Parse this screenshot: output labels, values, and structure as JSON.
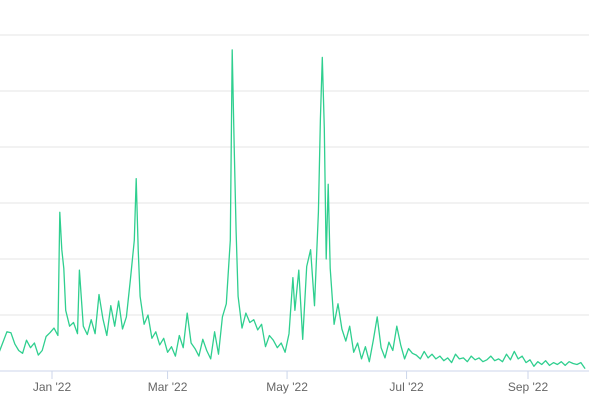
{
  "chart_data": {
    "type": "line",
    "title": "",
    "xlabel": "",
    "ylabel": "",
    "grid": true,
    "x_range": [
      "2021-12-01",
      "2022-09-30"
    ],
    "x_ticks": [
      {
        "label": "Jan '22",
        "date": "2022-01-01"
      },
      {
        "label": "Mar '22",
        "date": "2022-03-01"
      },
      {
        "label": "May '22",
        "date": "2022-05-01"
      },
      {
        "label": "Jul '22",
        "date": "2022-07-01"
      },
      {
        "label": "Sep '22",
        "date": "2022-09-01"
      }
    ],
    "y_axis_labels_visible": false,
    "y_gridline_count": 6,
    "series_color": "#2fcf8f",
    "series": [
      {
        "values": [
          [
            "2021-12-01",
            35
          ],
          [
            "2021-12-03",
            28
          ],
          [
            "2021-12-05",
            20
          ],
          [
            "2021-12-07",
            31
          ],
          [
            "2021-12-09",
            42
          ],
          [
            "2021-12-11",
            41
          ],
          [
            "2021-12-13",
            29
          ],
          [
            "2021-12-15",
            22
          ],
          [
            "2021-12-17",
            19
          ],
          [
            "2021-12-19",
            33
          ],
          [
            "2021-12-21",
            25
          ],
          [
            "2021-12-23",
            30
          ],
          [
            "2021-12-25",
            17
          ],
          [
            "2021-12-27",
            22
          ],
          [
            "2021-12-29",
            37
          ],
          [
            "2021-12-31",
            41
          ],
          [
            "2022-01-02",
            46
          ],
          [
            "2022-01-04",
            38
          ],
          [
            "2022-01-05",
            170
          ],
          [
            "2022-01-06",
            130
          ],
          [
            "2022-01-07",
            110
          ],
          [
            "2022-01-08",
            65
          ],
          [
            "2022-01-10",
            48
          ],
          [
            "2022-01-12",
            52
          ],
          [
            "2022-01-14",
            40
          ],
          [
            "2022-01-15",
            108
          ],
          [
            "2022-01-17",
            48
          ],
          [
            "2022-01-19",
            39
          ],
          [
            "2022-01-21",
            55
          ],
          [
            "2022-01-23",
            40
          ],
          [
            "2022-01-25",
            82
          ],
          [
            "2022-01-27",
            56
          ],
          [
            "2022-01-29",
            38
          ],
          [
            "2022-01-31",
            70
          ],
          [
            "2022-02-02",
            48
          ],
          [
            "2022-02-04",
            75
          ],
          [
            "2022-02-06",
            45
          ],
          [
            "2022-02-08",
            58
          ],
          [
            "2022-02-10",
            98
          ],
          [
            "2022-02-12",
            140
          ],
          [
            "2022-02-13",
            206
          ],
          [
            "2022-02-14",
            130
          ],
          [
            "2022-02-15",
            80
          ],
          [
            "2022-02-17",
            50
          ],
          [
            "2022-02-19",
            60
          ],
          [
            "2022-02-21",
            35
          ],
          [
            "2022-02-23",
            42
          ],
          [
            "2022-02-25",
            28
          ],
          [
            "2022-02-27",
            35
          ],
          [
            "2022-03-01",
            20
          ],
          [
            "2022-03-03",
            26
          ],
          [
            "2022-03-05",
            16
          ],
          [
            "2022-03-07",
            38
          ],
          [
            "2022-03-09",
            25
          ],
          [
            "2022-03-11",
            62
          ],
          [
            "2022-03-13",
            30
          ],
          [
            "2022-03-15",
            24
          ],
          [
            "2022-03-17",
            16
          ],
          [
            "2022-03-19",
            34
          ],
          [
            "2022-03-21",
            22
          ],
          [
            "2022-03-23",
            13
          ],
          [
            "2022-03-25",
            42
          ],
          [
            "2022-03-27",
            18
          ],
          [
            "2022-03-29",
            58
          ],
          [
            "2022-03-31",
            72
          ],
          [
            "2022-04-02",
            140
          ],
          [
            "2022-04-03",
            344
          ],
          [
            "2022-04-04",
            240
          ],
          [
            "2022-04-05",
            150
          ],
          [
            "2022-04-06",
            80
          ],
          [
            "2022-04-08",
            46
          ],
          [
            "2022-04-10",
            62
          ],
          [
            "2022-04-12",
            52
          ],
          [
            "2022-04-14",
            55
          ],
          [
            "2022-04-16",
            44
          ],
          [
            "2022-04-18",
            50
          ],
          [
            "2022-04-20",
            26
          ],
          [
            "2022-04-22",
            38
          ],
          [
            "2022-04-24",
            33
          ],
          [
            "2022-04-26",
            25
          ],
          [
            "2022-04-28",
            30
          ],
          [
            "2022-04-30",
            20
          ],
          [
            "2022-05-02",
            40
          ],
          [
            "2022-05-04",
            100
          ],
          [
            "2022-05-05",
            65
          ],
          [
            "2022-05-07",
            108
          ],
          [
            "2022-05-09",
            34
          ],
          [
            "2022-05-11",
            112
          ],
          [
            "2022-05-13",
            130
          ],
          [
            "2022-05-15",
            70
          ],
          [
            "2022-05-17",
            170
          ],
          [
            "2022-05-18",
            270
          ],
          [
            "2022-05-19",
            336
          ],
          [
            "2022-05-20",
            260
          ],
          [
            "2022-05-21",
            120
          ],
          [
            "2022-05-22",
            200
          ],
          [
            "2022-05-23",
            110
          ],
          [
            "2022-05-25",
            50
          ],
          [
            "2022-05-27",
            72
          ],
          [
            "2022-05-29",
            45
          ],
          [
            "2022-05-31",
            32
          ],
          [
            "2022-06-02",
            48
          ],
          [
            "2022-06-04",
            20
          ],
          [
            "2022-06-06",
            30
          ],
          [
            "2022-06-08",
            13
          ],
          [
            "2022-06-10",
            26
          ],
          [
            "2022-06-12",
            10
          ],
          [
            "2022-06-14",
            33
          ],
          [
            "2022-06-16",
            58
          ],
          [
            "2022-06-18",
            25
          ],
          [
            "2022-06-20",
            14
          ],
          [
            "2022-06-22",
            31
          ],
          [
            "2022-06-24",
            22
          ],
          [
            "2022-06-26",
            48
          ],
          [
            "2022-06-28",
            28
          ],
          [
            "2022-06-30",
            13
          ],
          [
            "2022-07-02",
            24
          ],
          [
            "2022-07-04",
            19
          ],
          [
            "2022-07-06",
            17
          ],
          [
            "2022-07-08",
            13
          ],
          [
            "2022-07-10",
            21
          ],
          [
            "2022-07-12",
            14
          ],
          [
            "2022-07-14",
            18
          ],
          [
            "2022-07-16",
            13
          ],
          [
            "2022-07-18",
            16
          ],
          [
            "2022-07-20",
            11
          ],
          [
            "2022-07-22",
            14
          ],
          [
            "2022-07-24",
            9
          ],
          [
            "2022-07-26",
            18
          ],
          [
            "2022-07-28",
            13
          ],
          [
            "2022-07-30",
            14
          ],
          [
            "2022-08-01",
            10
          ],
          [
            "2022-08-03",
            16
          ],
          [
            "2022-08-05",
            12
          ],
          [
            "2022-08-07",
            14
          ],
          [
            "2022-08-09",
            10
          ],
          [
            "2022-08-11",
            12
          ],
          [
            "2022-08-13",
            16
          ],
          [
            "2022-08-15",
            11
          ],
          [
            "2022-08-17",
            13
          ],
          [
            "2022-08-19",
            10
          ],
          [
            "2022-08-21",
            18
          ],
          [
            "2022-08-23",
            12
          ],
          [
            "2022-08-25",
            21
          ],
          [
            "2022-08-27",
            13
          ],
          [
            "2022-08-29",
            16
          ],
          [
            "2022-08-31",
            9
          ],
          [
            "2022-09-02",
            12
          ],
          [
            "2022-09-04",
            5
          ],
          [
            "2022-09-06",
            10
          ],
          [
            "2022-09-08",
            7
          ],
          [
            "2022-09-10",
            11
          ],
          [
            "2022-09-12",
            6
          ],
          [
            "2022-09-14",
            9
          ],
          [
            "2022-09-16",
            7
          ],
          [
            "2022-09-18",
            10
          ],
          [
            "2022-09-20",
            6
          ],
          [
            "2022-09-22",
            10
          ],
          [
            "2022-09-24",
            8
          ],
          [
            "2022-09-26",
            7
          ],
          [
            "2022-09-28",
            9
          ],
          [
            "2022-09-30",
            3
          ]
        ]
      }
    ]
  }
}
